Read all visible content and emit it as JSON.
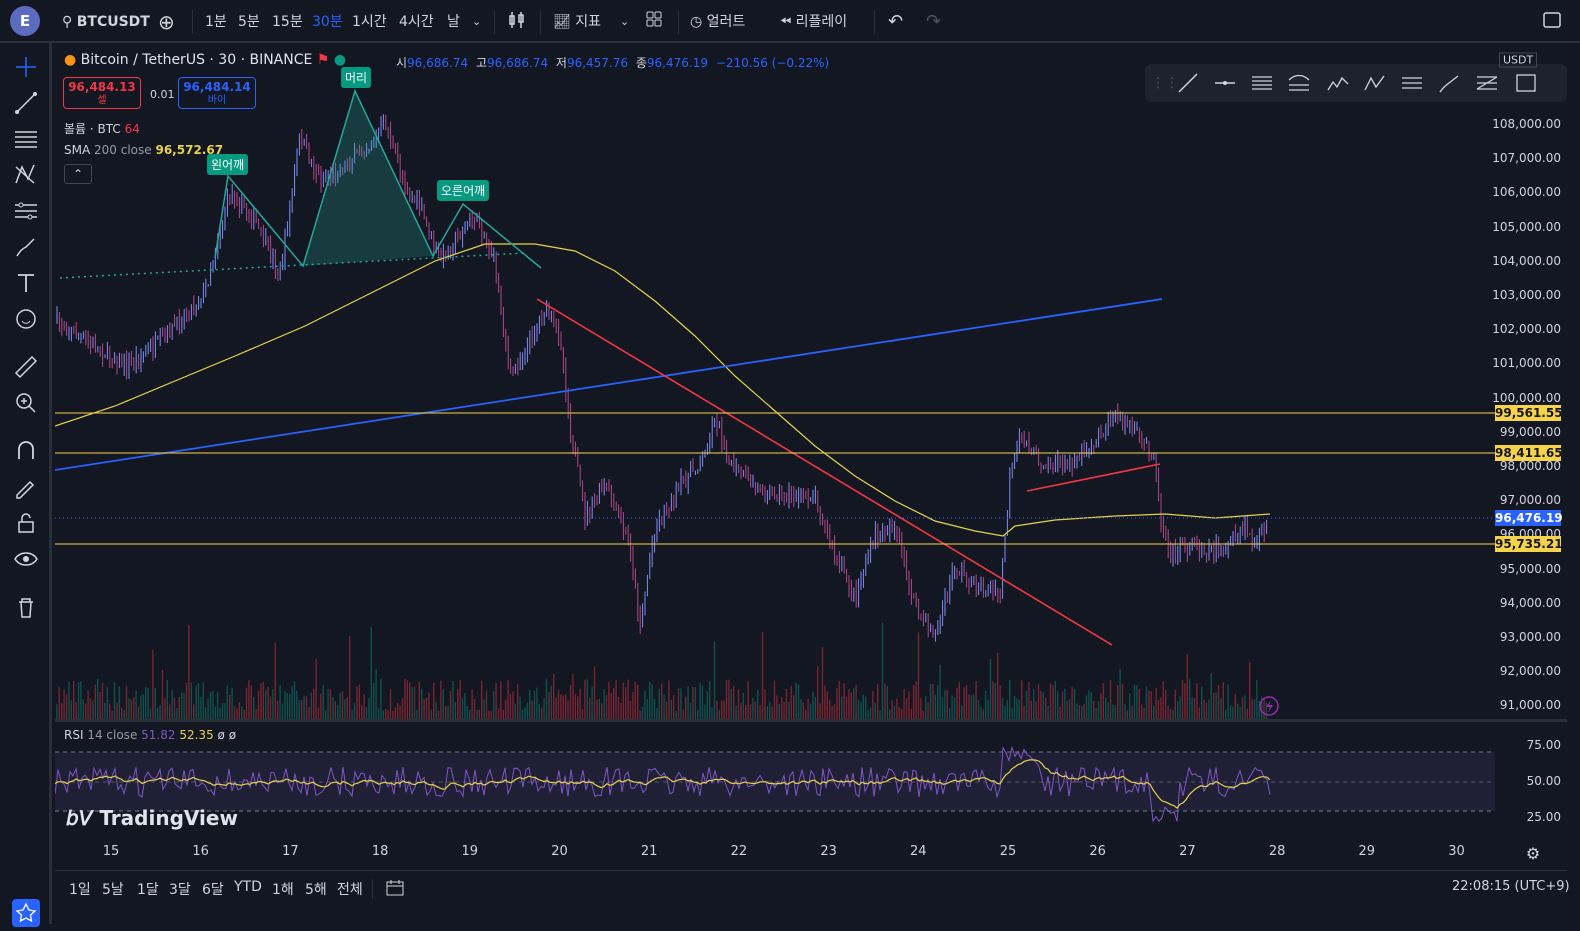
{
  "topbar": {
    "avatar_letter": "E",
    "symbol": "BTCUSDT",
    "intervals": [
      "1분",
      "5분",
      "15분",
      "30분",
      "1시간",
      "4시간",
      "날"
    ],
    "active_interval": "30분",
    "indicators_label": "지표",
    "alert_label": "얼러트",
    "replay_label": "리플레이"
  },
  "legend": {
    "title": "Bitcoin / TetherUS · 30 · BINANCE",
    "open_label": "시",
    "open": "96,686.74",
    "high_label": "고",
    "high": "96,686.74",
    "low_label": "저",
    "low": "96,457.76",
    "close_label": "종",
    "close": "96,476.19",
    "change": "−210.56 (−0.22%)",
    "sell_price": "96,484.13",
    "sell_label": "셀",
    "spread": "0.01",
    "buy_price": "96,484.14",
    "buy_label": "바이",
    "volume_label": "볼륨 · BTC",
    "volume_value": "64",
    "sma_label": "SMA",
    "sma_params": "200 close",
    "sma_value": "96,572.67"
  },
  "patterns": {
    "left_shoulder": "왼어깨",
    "head": "머리",
    "right_shoulder": "오른어깨"
  },
  "price_scale": {
    "currency": "USDT",
    "labels": [
      "108,000.00",
      "107,000.00",
      "106,000.00",
      "105,000.00",
      "104,000.00",
      "103,000.00",
      "102,000.00",
      "101,000.00",
      "100,000.00",
      "99,000.00",
      "98,000.00",
      "97,000.00",
      "96,000.00",
      "95,000.00",
      "94,000.00",
      "93,000.00",
      "92,000.00",
      "91,000.00"
    ],
    "tags": [
      {
        "value": "99,561.55",
        "color": "#f7d34a"
      },
      {
        "value": "98,411.65",
        "color": "#f7d34a"
      },
      {
        "value": "96,476.19",
        "color": "#2962ff"
      },
      {
        "value": "95,735.21",
        "color": "#f7d34a"
      }
    ]
  },
  "rsi": {
    "label": "RSI",
    "params": "14 close",
    "value1": "51.82",
    "value2": "52.35",
    "extra": "ø ø",
    "levels": [
      "75.00",
      "50.00",
      "25.00"
    ]
  },
  "time_axis": [
    "15",
    "16",
    "17",
    "18",
    "19",
    "20",
    "21",
    "22",
    "23",
    "24",
    "25",
    "26",
    "27",
    "28",
    "29",
    "30"
  ],
  "bottombar": {
    "ranges": [
      "1일",
      "5날",
      "1달",
      "3달",
      "6달",
      "YTD",
      "1해",
      "5해",
      "전체"
    ],
    "clock": "22:08:15 (UTC+9)"
  },
  "watermark": "TradingView",
  "colors": {
    "bg": "#131722",
    "up": "#089981",
    "down": "#f23645",
    "candle": "#6a5acd",
    "sma": "#e6d34a",
    "blue_line": "#2962ff",
    "red_line": "#f23645"
  }
}
